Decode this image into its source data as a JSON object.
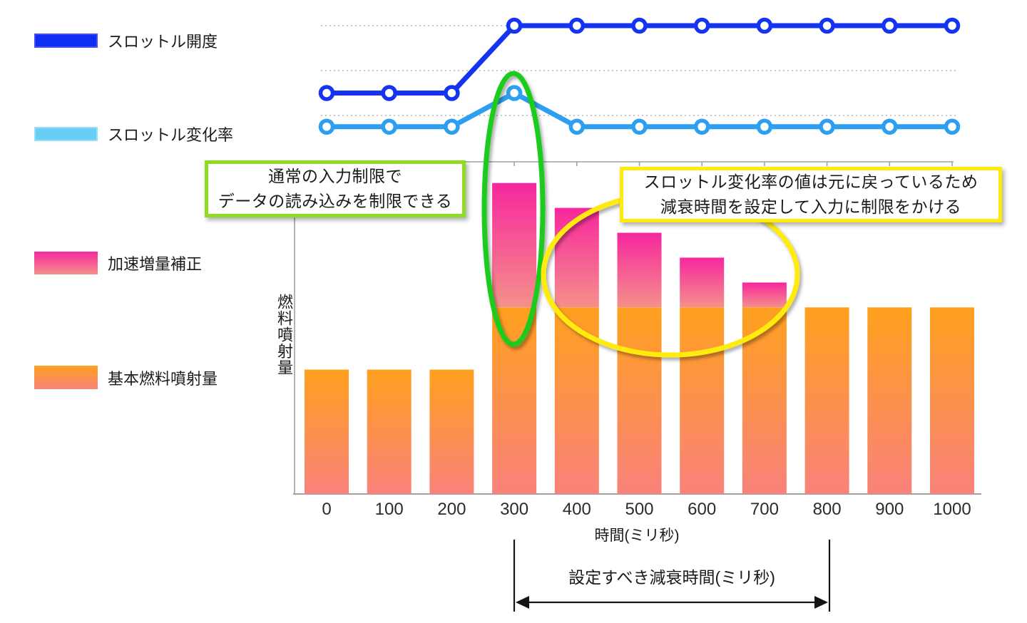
{
  "slide": {
    "background": "#FFFFFF"
  },
  "legend": {
    "items": [
      {
        "id": "throttle-opening",
        "label": "スロットル開度",
        "swatch_color": "#0E2FF1"
      },
      {
        "id": "throttle-rate",
        "label": "スロットル変化率",
        "swatch_color": "#69CEF6"
      },
      {
        "id": "accel-correction",
        "label": "加速増量補正",
        "swatch_top": "#F6279E",
        "swatch_bottom": "#F5908A"
      },
      {
        "id": "base-fuel",
        "label": "基本燃料噴射量",
        "swatch_top": "#FFA01E",
        "swatch_bottom": "#F9827B"
      }
    ]
  },
  "axes": {
    "x_title": "時間(ミリ秒)",
    "y_title": "燃料噴射量",
    "x_ticks": [
      "0",
      "100",
      "200",
      "300",
      "400",
      "500",
      "600",
      "700",
      "800",
      "900",
      "1000"
    ]
  },
  "annotations": {
    "green_box": {
      "lines": [
        "通常の入力制限で",
        "データの読み込みを制限できる"
      ],
      "border_color": "#8FDB22"
    },
    "yellow_box": {
      "lines": [
        "スロットル変化率の値は元に戻っているため",
        "減衰時間を設定して入力に制限をかける"
      ],
      "border_color": "#FFEB0A"
    },
    "green_ellipse": {
      "color": "#1ECC1E",
      "marks": "300ms bar and throttle-rate peak"
    },
    "yellow_ellipse": {
      "color": "#FFEB0A",
      "marks": "decaying correction bars 400-700ms"
    },
    "decay_span": {
      "label": "設定すべき減衰時間(ミリ秒)",
      "from_ms": 300,
      "to_ms": 800
    }
  },
  "colors": {
    "grid": "#C9C9C9",
    "axis": "#A0A0A0",
    "text": "#1A1A1A",
    "throttle_opening_line": "#1534F1",
    "throttle_rate_line": "#2D9FF0",
    "pink_top": "#F6279E",
    "pink_bottom": "#F5908A",
    "orange_top": "#FFA01E",
    "orange_bottom": "#F9827B"
  },
  "chart_data": [
    {
      "type": "line",
      "title": "throttle signals (top panel)",
      "x": [
        0,
        100,
        200,
        300,
        400,
        500,
        600,
        700,
        800,
        900,
        1000
      ],
      "series": [
        {
          "name": "スロットル開度",
          "color": "#1534F1",
          "values": [
            1.5,
            1.5,
            1.5,
            3,
            3,
            3,
            3,
            3,
            3,
            3,
            3
          ]
        },
        {
          "name": "スロットル変化率",
          "color": "#2D9FF0",
          "values": [
            0.75,
            0.75,
            0.75,
            1.5,
            0.75,
            0.75,
            0.75,
            0.75,
            0.75,
            0.75,
            0.75
          ]
        }
      ],
      "marker": "open-circle",
      "grid": "3 dotted horizontal gridlines at levels 1,2,3",
      "units": "arbitrary levels",
      "legend_position": "left"
    },
    {
      "type": "bar",
      "stacked": true,
      "title": "fuel injection (bottom panel)",
      "categories": [
        0,
        100,
        200,
        300,
        400,
        500,
        600,
        700,
        800,
        900,
        1000
      ],
      "series": [
        {
          "name": "基本燃料噴射量",
          "color_top": "#FFA01E",
          "color_bottom": "#F9827B",
          "values": [
            5,
            5,
            5,
            7.5,
            7.5,
            7.5,
            7.5,
            7.5,
            7.5,
            7.5,
            7.5
          ]
        },
        {
          "name": "加速増量補正",
          "color_top": "#F6279E",
          "color_bottom": "#F5908A",
          "values": [
            0,
            0,
            0,
            5,
            4,
            3,
            2,
            1,
            0,
            0,
            0
          ]
        }
      ],
      "xlabel": "時間(ミリ秒)",
      "ylabel": "燃料噴射量",
      "units": "arbitrary fuel units",
      "ylim": [
        0,
        13.4
      ]
    }
  ]
}
